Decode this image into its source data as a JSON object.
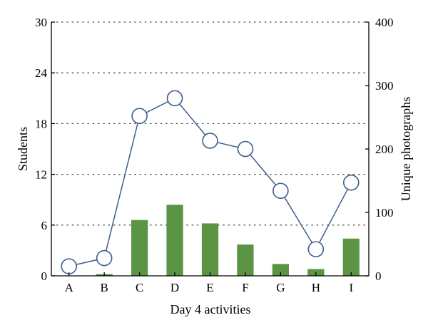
{
  "chart_data": {
    "type": "bar+line",
    "categories": [
      "A",
      "B",
      "C",
      "D",
      "E",
      "F",
      "G",
      "H",
      "I"
    ],
    "xlabel": "Day 4 activities",
    "ylabel_left": "Students",
    "ylabel_right": "Unique photographs",
    "ylim_left": [
      0,
      30
    ],
    "ylim_right": [
      0,
      400
    ],
    "yticks_left": [
      "0",
      "6",
      "12",
      "18",
      "24",
      "30"
    ],
    "yticks_right": [
      "0",
      "100",
      "200",
      "300",
      "400"
    ],
    "grid": "horizontal-dotted",
    "series": [
      {
        "type": "bar",
        "axis": "left",
        "values": [
          0,
          0.2,
          6.6,
          8.4,
          6.2,
          3.7,
          1.4,
          0.8,
          4.4
        ]
      },
      {
        "type": "line",
        "axis": "right",
        "values": [
          15,
          28,
          252,
          280,
          213,
          200,
          134,
          42,
          147
        ]
      }
    ],
    "colors": {
      "bar": "#5b9443",
      "line": "#3d5e8c",
      "marker_fill": "#ffffff"
    }
  }
}
